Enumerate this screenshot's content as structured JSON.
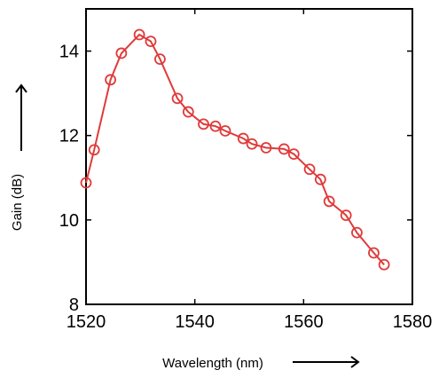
{
  "chart_data": {
    "type": "line",
    "title": "",
    "xlabel": "Wavelength (nm)",
    "ylabel": "Gain (dB)",
    "xlim": [
      1520,
      1580
    ],
    "ylim": [
      8,
      15
    ],
    "xticks": [
      1520,
      1540,
      1560,
      1580
    ],
    "yticks": [
      8,
      10,
      12,
      14
    ],
    "xtick_labels": [
      "1520",
      "1540",
      "1560",
      "1580"
    ],
    "ytick_labels": [
      "8",
      "10",
      "12",
      "14"
    ],
    "grid": false,
    "line_color": "#e03a3a",
    "marker": "circle",
    "series": [
      {
        "x": [
          1520.0,
          1521.5,
          1524.5,
          1526.5,
          1529.8,
          1531.9,
          1533.6,
          1536.8,
          1538.8,
          1541.6,
          1543.8,
          1545.6,
          1548.9,
          1550.5,
          1553.1,
          1556.4,
          1558.2,
          1561.1,
          1563.1,
          1564.7,
          1567.8,
          1569.8,
          1572.9,
          1574.8
        ],
        "y": [
          10.88,
          11.66,
          13.32,
          13.95,
          14.39,
          14.23,
          13.81,
          12.88,
          12.56,
          12.27,
          12.22,
          12.11,
          11.93,
          11.8,
          11.71,
          11.68,
          11.56,
          11.2,
          10.96,
          10.44,
          10.11,
          9.7,
          9.22,
          8.94
        ]
      }
    ]
  }
}
